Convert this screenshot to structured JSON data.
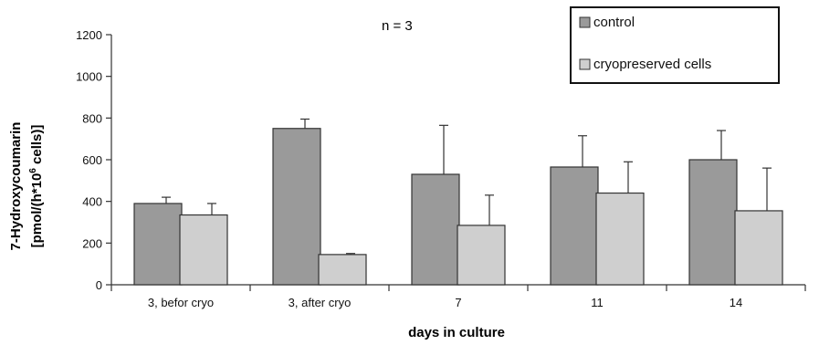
{
  "chart_data": {
    "type": "bar",
    "annotation": "n = 3",
    "xlabel": "days in culture",
    "ylabel_line1": "7-Hydroxycoumarin",
    "ylabel_line2": "[pmol/(h*10",
    "ylabel_sup": "6",
    "ylabel_line2_end": " cells)]",
    "ylim": [
      0,
      1200
    ],
    "yticks": [
      0,
      200,
      400,
      600,
      800,
      1000,
      1200
    ],
    "categories": [
      "3, befor cryo",
      "3, after cryo",
      "7",
      "11",
      "14"
    ],
    "series": [
      {
        "name": "control",
        "values": [
          390,
          750,
          530,
          565,
          600
        ],
        "errors": [
          30,
          45,
          235,
          150,
          140
        ],
        "color": "#9a9a9a"
      },
      {
        "name": "cryopreserved cells",
        "values": [
          335,
          145,
          285,
          440,
          355
        ],
        "errors": [
          55,
          5,
          145,
          150,
          205
        ],
        "color": "#cfcfcf"
      }
    ],
    "legend_position": "top-right",
    "grid": false
  }
}
